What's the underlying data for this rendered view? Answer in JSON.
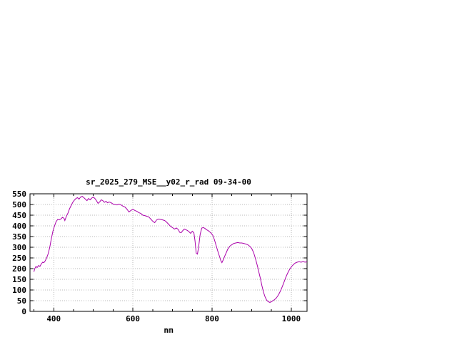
{
  "window": {
    "background": "#ffffff"
  },
  "chart_data": {
    "type": "line",
    "title": "sr_2025_279_MSE__y02_r_rad 09-34-00",
    "xlabel": "nm",
    "ylabel": "",
    "xlim": [
      340,
      1040
    ],
    "ylim": [
      0,
      550
    ],
    "x_major_ticks": [
      400,
      600,
      800,
      1000
    ],
    "x_minor_tick_step": 50,
    "y_ticks": [
      0,
      50,
      100,
      150,
      200,
      250,
      300,
      350,
      400,
      450,
      500,
      550
    ],
    "grid": true,
    "legend_position": "none",
    "line_color": "#aa00aa",
    "grid_color": "#b8b8b8",
    "border_color": "#000000",
    "points": [
      [
        350,
        185
      ],
      [
        352,
        200
      ],
      [
        355,
        210
      ],
      [
        358,
        205
      ],
      [
        362,
        215
      ],
      [
        365,
        210
      ],
      [
        368,
        220
      ],
      [
        372,
        230
      ],
      [
        375,
        228
      ],
      [
        378,
        235
      ],
      [
        382,
        250
      ],
      [
        386,
        270
      ],
      [
        390,
        300
      ],
      [
        394,
        340
      ],
      [
        398,
        375
      ],
      [
        402,
        400
      ],
      [
        406,
        420
      ],
      [
        410,
        430
      ],
      [
        414,
        428
      ],
      [
        418,
        432
      ],
      [
        422,
        440
      ],
      [
        426,
        435
      ],
      [
        428,
        425
      ],
      [
        432,
        445
      ],
      [
        436,
        460
      ],
      [
        440,
        480
      ],
      [
        444,
        495
      ],
      [
        448,
        510
      ],
      [
        452,
        520
      ],
      [
        456,
        528
      ],
      [
        460,
        532
      ],
      [
        464,
        525
      ],
      [
        468,
        535
      ],
      [
        472,
        538
      ],
      [
        476,
        532
      ],
      [
        480,
        525
      ],
      [
        484,
        518
      ],
      [
        488,
        528
      ],
      [
        492,
        522
      ],
      [
        496,
        530
      ],
      [
        500,
        535
      ],
      [
        504,
        528
      ],
      [
        508,
        518
      ],
      [
        512,
        505
      ],
      [
        516,
        512
      ],
      [
        520,
        522
      ],
      [
        524,
        518
      ],
      [
        528,
        510
      ],
      [
        532,
        515
      ],
      [
        536,
        508
      ],
      [
        540,
        512
      ],
      [
        545,
        508
      ],
      [
        550,
        502
      ],
      [
        555,
        500
      ],
      [
        560,
        498
      ],
      [
        565,
        502
      ],
      [
        570,
        498
      ],
      [
        575,
        492
      ],
      [
        580,
        488
      ],
      [
        585,
        478
      ],
      [
        590,
        465
      ],
      [
        595,
        472
      ],
      [
        600,
        478
      ],
      [
        605,
        472
      ],
      [
        610,
        468
      ],
      [
        615,
        462
      ],
      [
        620,
        458
      ],
      [
        625,
        450
      ],
      [
        630,
        448
      ],
      [
        635,
        445
      ],
      [
        640,
        442
      ],
      [
        645,
        432
      ],
      [
        650,
        422
      ],
      [
        655,
        415
      ],
      [
        660,
        428
      ],
      [
        665,
        432
      ],
      [
        670,
        430
      ],
      [
        675,
        428
      ],
      [
        680,
        425
      ],
      [
        685,
        418
      ],
      [
        690,
        408
      ],
      [
        695,
        398
      ],
      [
        700,
        392
      ],
      [
        705,
        385
      ],
      [
        710,
        390
      ],
      [
        715,
        382
      ],
      [
        718,
        370
      ],
      [
        722,
        368
      ],
      [
        726,
        378
      ],
      [
        730,
        385
      ],
      [
        734,
        382
      ],
      [
        738,
        378
      ],
      [
        742,
        372
      ],
      [
        746,
        365
      ],
      [
        750,
        375
      ],
      [
        754,
        368
      ],
      [
        757,
        330
      ],
      [
        760,
        272
      ],
      [
        763,
        268
      ],
      [
        766,
        300
      ],
      [
        770,
        360
      ],
      [
        774,
        390
      ],
      [
        778,
        392
      ],
      [
        782,
        388
      ],
      [
        786,
        382
      ],
      [
        790,
        378
      ],
      [
        794,
        372
      ],
      [
        798,
        365
      ],
      [
        802,
        355
      ],
      [
        806,
        335
      ],
      [
        810,
        310
      ],
      [
        814,
        285
      ],
      [
        818,
        262
      ],
      [
        822,
        238
      ],
      [
        825,
        228
      ],
      [
        828,
        240
      ],
      [
        832,
        258
      ],
      [
        836,
        275
      ],
      [
        840,
        292
      ],
      [
        845,
        305
      ],
      [
        850,
        312
      ],
      [
        855,
        318
      ],
      [
        860,
        320
      ],
      [
        865,
        322
      ],
      [
        870,
        320
      ],
      [
        875,
        320
      ],
      [
        880,
        318
      ],
      [
        885,
        315
      ],
      [
        890,
        312
      ],
      [
        895,
        305
      ],
      [
        900,
        295
      ],
      [
        905,
        275
      ],
      [
        910,
        245
      ],
      [
        915,
        210
      ],
      [
        918,
        185
      ],
      [
        922,
        155
      ],
      [
        926,
        120
      ],
      [
        930,
        90
      ],
      [
        934,
        68
      ],
      [
        938,
        52
      ],
      [
        942,
        45
      ],
      [
        946,
        42
      ],
      [
        950,
        45
      ],
      [
        954,
        50
      ],
      [
        958,
        55
      ],
      [
        962,
        62
      ],
      [
        966,
        72
      ],
      [
        970,
        85
      ],
      [
        974,
        100
      ],
      [
        978,
        118
      ],
      [
        982,
        138
      ],
      [
        986,
        158
      ],
      [
        990,
        175
      ],
      [
        994,
        190
      ],
      [
        998,
        202
      ],
      [
        1002,
        212
      ],
      [
        1006,
        220
      ],
      [
        1010,
        226
      ],
      [
        1015,
        230
      ],
      [
        1020,
        232
      ],
      [
        1025,
        230
      ],
      [
        1030,
        233
      ],
      [
        1035,
        230
      ],
      [
        1040,
        232
      ]
    ]
  }
}
